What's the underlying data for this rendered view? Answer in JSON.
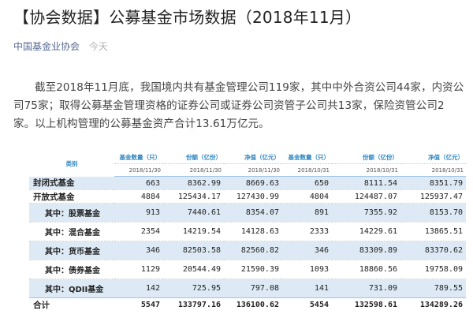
{
  "article": {
    "title": "【协会数据】公募基金市场数据（2018年11月）",
    "source": "中国基金业协会",
    "date": "今天",
    "paragraph": "截至2018年11月底，我国境内共有基金管理公司119家，其中中外合资公司44家，内资公司75家；取得公募基金管理资格的证券公司或证券公司资管子公司共13家，保险资管公司2家。以上机构管理的公募基金资产合计13.61万亿元。"
  },
  "table": {
    "category_header": "类别",
    "columns": [
      {
        "label": "基金数量（只）",
        "date": "2018/11/30"
      },
      {
        "label": "份额（亿份）",
        "date": "2018/11/30"
      },
      {
        "label": "净值（亿元）",
        "date": "2018/11/30"
      },
      {
        "label": "基金数量（只）",
        "date": "2018/10/31"
      },
      {
        "label": "份额（亿份）",
        "date": "2018/10/31"
      },
      {
        "label": "净值（亿元）",
        "date": "2018/10/31"
      }
    ],
    "rows": [
      {
        "label": "封闭式基金",
        "values": [
          "663",
          "8362.99",
          "8669.63",
          "650",
          "8111.54",
          "8351.79"
        ]
      },
      {
        "label": "开放式基金",
        "values": [
          "4884",
          "125434.17",
          "127430.99",
          "4804",
          "124487.07",
          "125937.47"
        ]
      },
      {
        "label": "其中：股票基金",
        "values": [
          "913",
          "7440.61",
          "8354.07",
          "891",
          "7355.92",
          "8153.70"
        ]
      },
      {
        "label": "其中：混合基金",
        "values": [
          "2354",
          "14219.54",
          "14128.63",
          "2333",
          "14229.61",
          "13865.51"
        ]
      },
      {
        "label": "其中：货币基金",
        "values": [
          "346",
          "82503.58",
          "82560.82",
          "346",
          "83309.89",
          "83370.62"
        ]
      },
      {
        "label": "其中：债券基金",
        "values": [
          "1129",
          "20544.49",
          "21590.39",
          "1093",
          "18860.56",
          "19758.09"
        ]
      },
      {
        "label": "其中：QDII基金",
        "values": [
          "142",
          "725.95",
          "797.08",
          "141",
          "731.09",
          "789.55"
        ]
      }
    ],
    "total": {
      "label": "合计",
      "values": [
        "5547",
        "133797.16",
        "136100.62",
        "5454",
        "132598.61",
        "134289.26"
      ]
    }
  }
}
